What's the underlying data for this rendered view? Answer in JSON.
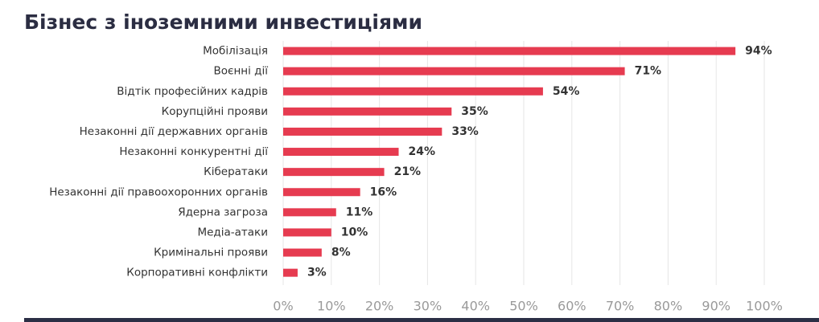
{
  "chart_data": {
    "type": "bar",
    "orientation": "horizontal",
    "title": "Бізнес з іноземними инвестиціями",
    "categories": [
      "Мобілізація",
      "Воєнні дії",
      "Відтік професійних кадрів",
      "Корупційні прояви",
      "Незаконні дії державних органів",
      "Незаконні конкурентні дії",
      "Кібератаки",
      "Незаконні дії правоохоронних органів",
      "Ядерна загроза",
      "Медіа-атаки",
      "Кримінальні прояви",
      "Корпоративні конфлікти"
    ],
    "values": [
      94,
      71,
      54,
      35,
      33,
      24,
      21,
      16,
      11,
      10,
      8,
      3
    ],
    "value_labels": [
      "94%",
      "71%",
      "54%",
      "35%",
      "33%",
      "24%",
      "21%",
      "16%",
      "11%",
      "10%",
      "8%",
      "3%"
    ],
    "color": "#e63b50",
    "xlim": [
      0,
      100
    ],
    "xticks": [
      {
        "value": 0,
        "label": "0%"
      },
      {
        "value": 10,
        "label": "10%"
      },
      {
        "value": 20,
        "label": "20%"
      },
      {
        "value": 30,
        "label": "30%"
      },
      {
        "value": 40,
        "label": "40%"
      },
      {
        "value": 50,
        "label": "50%"
      },
      {
        "value": 60,
        "label": "60%"
      },
      {
        "value": 70,
        "label": "70%"
      },
      {
        "value": 80,
        "label": "80%"
      },
      {
        "value": 90,
        "label": "90%"
      },
      {
        "value": 100,
        "label": "100%"
      }
    ],
    "grid": true
  }
}
